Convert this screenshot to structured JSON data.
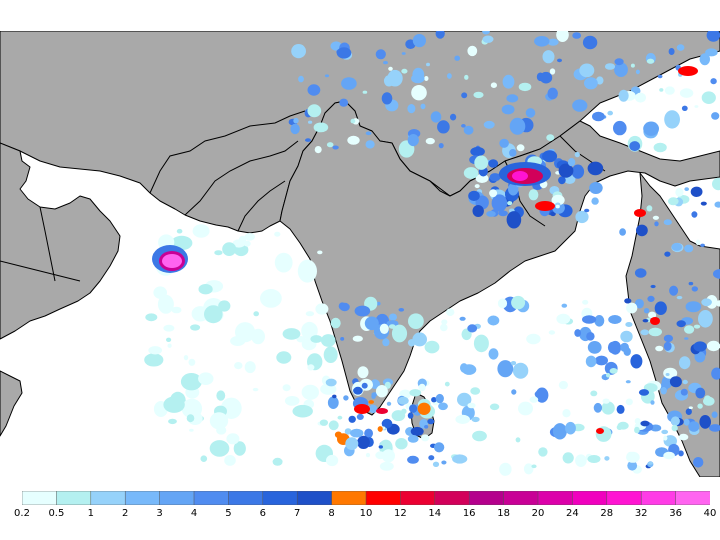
{
  "map": {
    "region": "South Asia / Arabian Sea / Bay of Bengal",
    "land_color": "#a9a9a9",
    "sea_color": "#ffffff",
    "border_color": "#000000"
  },
  "legend": {
    "labels": [
      "0.2",
      "0.5",
      "1",
      "2",
      "3",
      "4",
      "5",
      "6",
      "7",
      "8",
      "10",
      "12",
      "14",
      "16",
      "18",
      "20",
      "24",
      "28",
      "32",
      "36",
      "40"
    ],
    "colors": [
      "#e6ffff",
      "#b4f0f0",
      "#96d2fa",
      "#78b9fa",
      "#64a5f5",
      "#508cf0",
      "#3c78e6",
      "#2864dc",
      "#1e50c8",
      "#ff7800",
      "#ff0000",
      "#eb0032",
      "#d2005a",
      "#b4008c",
      "#c80096",
      "#dc00aa",
      "#f000be",
      "#ff14d2",
      "#ff3ce6",
      "#ff64f0"
    ]
  },
  "precip_cells": [
    {
      "level": 4,
      "region": "southern india coast"
    },
    {
      "level": 10,
      "region": "himalaya east"
    },
    {
      "level": 18,
      "region": "arabian sea cyclone"
    }
  ]
}
